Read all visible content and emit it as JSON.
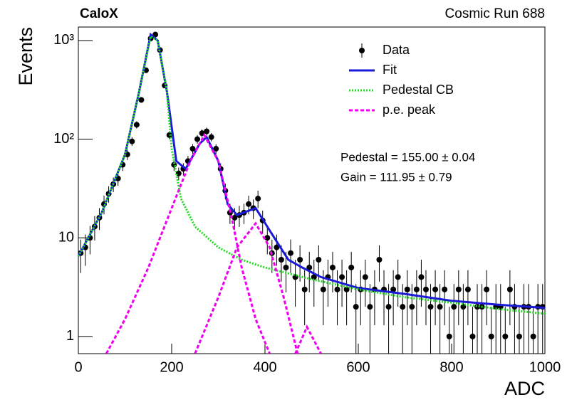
{
  "chart_data": {
    "type": "line",
    "title": "CaloX",
    "subtitle": "Cosmic Run 688",
    "x_label": "ADC",
    "y_label": "Events",
    "log_y": true,
    "legend": "top right",
    "annotations": [
      "Pedestal = 155.00 ± 0.04",
      "Gain = 111.95 ± 0.79"
    ],
    "xlim": [
      0,
      1000
    ],
    "xticks": [
      0,
      200,
      400,
      600,
      800,
      1000
    ],
    "ylim": [
      0.67,
      1370
    ],
    "yticks": [
      1,
      10,
      {
        "value": 100,
        "label": "10²"
      },
      {
        "value": 1000,
        "label": "10³"
      }
    ],
    "series": [
      {
        "name": "Data",
        "style": "points",
        "color": "#000000",
        "x": [
          5,
          15,
          25,
          35,
          45,
          55,
          65,
          75,
          85,
          95,
          105,
          115,
          125,
          135,
          145,
          155,
          165,
          175,
          185,
          195,
          205,
          215,
          225,
          235,
          245,
          255,
          265,
          275,
          285,
          295,
          305,
          315,
          325,
          335,
          345,
          355,
          365,
          375,
          385,
          395,
          405,
          415,
          425,
          435,
          445,
          455,
          465,
          475,
          485,
          495,
          505,
          515,
          525,
          535,
          545,
          555,
          565,
          575,
          585,
          595,
          605,
          615,
          625,
          635,
          645,
          655,
          665,
          675,
          685,
          695,
          705,
          715,
          725,
          735,
          745,
          755,
          765,
          775,
          785,
          795,
          805,
          815,
          825,
          835,
          845,
          855,
          865,
          875,
          885,
          895,
          905,
          915,
          925,
          935,
          945,
          955,
          965,
          975,
          985,
          995
        ],
        "values": [
          7,
          8,
          10,
          13,
          16,
          22,
          28,
          35,
          40,
          55,
          70,
          95,
          140,
          250,
          500,
          1050,
          1150,
          800,
          350,
          110,
          55,
          45,
          50,
          60,
          80,
          100,
          115,
          120,
          105,
          80,
          50,
          30,
          18,
          16,
          17,
          18,
          22,
          20,
          25,
          15,
          10,
          7,
          8,
          6,
          5,
          7,
          4,
          6,
          3,
          5,
          4,
          6,
          3,
          4,
          5,
          3,
          4,
          3,
          5,
          2,
          3,
          4,
          2,
          3,
          6,
          3,
          2,
          3,
          4,
          2,
          3,
          2,
          3,
          4,
          3,
          2,
          3,
          2,
          3,
          1,
          2,
          3,
          2,
          3,
          1,
          2,
          2,
          3,
          1,
          2,
          2,
          1,
          3,
          2,
          1,
          2,
          2,
          1,
          2,
          2
        ],
        "errors": [
          2.6,
          2.8,
          3.2,
          3.6,
          4,
          4.7,
          5.3,
          5.9,
          6.3,
          7.4,
          8.4,
          9.7,
          11.8,
          15.8,
          22.4,
          32.4,
          33.9,
          28.3,
          18.7,
          10.5,
          7.4,
          6.7,
          7.1,
          7.7,
          8.9,
          10,
          10.7,
          11,
          10.2,
          8.9,
          7.1,
          5.5,
          4.2,
          4,
          4.1,
          4.2,
          4.7,
          4.5,
          5,
          3.9,
          3.2,
          2.6,
          2.8,
          2.4,
          2.2,
          2.6,
          2,
          2.4,
          1.7,
          2.2,
          2,
          2.4,
          1.7,
          2,
          2.2,
          1.7,
          2,
          1.7,
          2.2,
          1.4,
          1.7,
          2,
          1.4,
          1.7,
          2.4,
          1.7,
          1.4,
          1.7,
          2,
          1.4,
          1.7,
          1.4,
          1.7,
          2,
          1.7,
          1.4,
          1.7,
          1.4,
          1.7,
          1,
          1.4,
          1.7,
          1.4,
          1.7,
          1,
          1.4,
          1.4,
          1.7,
          1,
          1.4,
          1.4,
          1,
          1.7,
          1.4,
          1,
          1.4,
          1.4,
          1,
          1.4,
          1.4
        ]
      },
      {
        "name": "Fit",
        "style": "solid",
        "color": "#1a1ad6",
        "x": [
          0,
          50,
          100,
          130,
          155,
          170,
          190,
          210,
          230,
          260,
          275,
          300,
          320,
          340,
          380,
          420,
          450,
          480,
          520,
          600,
          700,
          800,
          900,
          1000
        ],
        "values": [
          6.5,
          18,
          70,
          300,
          1150,
          1000,
          300,
          60,
          50,
          90,
          105,
          60,
          22,
          17,
          20,
          10,
          6,
          5,
          4,
          3.1,
          2.7,
          2.3,
          2.1,
          1.95
        ]
      },
      {
        "name": "Pedestal CB",
        "style": "dotted",
        "color": "#22dd22",
        "x": [
          0,
          50,
          100,
          130,
          155,
          170,
          190,
          200,
          220,
          250,
          300,
          350,
          400,
          500,
          600,
          700,
          800,
          900,
          1000
        ],
        "values": [
          6.5,
          18,
          70,
          300,
          1100,
          1000,
          300,
          80,
          25,
          13,
          8,
          6,
          5,
          3.8,
          3,
          2.5,
          2.2,
          1.9,
          1.7
        ]
      },
      {
        "name": "p.e. peak",
        "style": "dashed",
        "color": "#ee00ee",
        "x": [
          60,
          100,
          150,
          200,
          240,
          270,
          300,
          330,
          350,
          380,
          410,
          null,
          250,
          300,
          340,
          380,
          410,
          440,
          470,
          null,
          465,
          490,
          520
        ],
        "values": [
          0.67,
          1.5,
          5,
          20,
          60,
          110,
          60,
          15,
          5,
          1.5,
          0.67,
          null,
          0.67,
          2.5,
          8,
          14,
          8,
          2.5,
          0.67,
          null,
          0.67,
          1.25,
          0.67
        ]
      }
    ]
  }
}
